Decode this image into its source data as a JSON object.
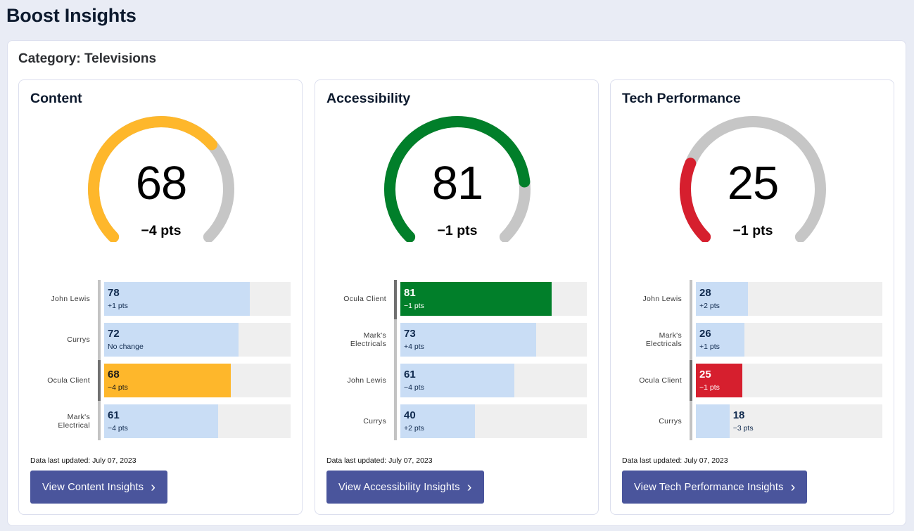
{
  "page": {
    "title": "Boost Insights"
  },
  "category": {
    "label": "Category: Televisions"
  },
  "colors": {
    "track": "#c6c6c6",
    "bar_default": "#c9ddf5",
    "bar_track": "#efefef",
    "button": "#4a559c",
    "warning": "#feb72b",
    "good": "#017f2a",
    "bad": "#d61f2e"
  },
  "cards": [
    {
      "title": "Content",
      "score": "68",
      "score_value": 68,
      "delta": "−4 pts",
      "accent": "#feb72b",
      "accent_text": "#1a1a1a",
      "rows": [
        {
          "label": "John Lewis",
          "value": 78,
          "value_text": "78",
          "change": "+1 pts",
          "client": false
        },
        {
          "label": "Currys",
          "value": 72,
          "value_text": "72",
          "change": "No change",
          "client": false
        },
        {
          "label": "Ocula Client",
          "value": 68,
          "value_text": "68",
          "change": "−4 pts",
          "client": true
        },
        {
          "label": "Mark's Electrical",
          "value": 61,
          "value_text": "61",
          "change": "−4 pts",
          "client": false
        }
      ],
      "updated": "Data last updated: July 07, 2023",
      "button_label": "View Content Insights",
      "button_icon": "chevron-right-icon"
    },
    {
      "title": "Accessibility",
      "score": "81",
      "score_value": 81,
      "delta": "−1 pts",
      "accent": "#017f2a",
      "accent_text": "#ffffff",
      "rows": [
        {
          "label": "Ocula Client",
          "value": 81,
          "value_text": "81",
          "change": "−1 pts",
          "client": true
        },
        {
          "label": "Mark's Electricals",
          "value": 73,
          "value_text": "73",
          "change": "+4 pts",
          "client": false
        },
        {
          "label": "John Lewis",
          "value": 61,
          "value_text": "61",
          "change": "−4 pts",
          "client": false
        },
        {
          "label": "Currys",
          "value": 40,
          "value_text": "40",
          "change": "+2 pts",
          "client": false
        }
      ],
      "updated": "Data last updated: July 07, 2023",
      "button_label": "View Accessibility Insights",
      "button_icon": "chevron-right-icon"
    },
    {
      "title": "Tech Performance",
      "score": "25",
      "score_value": 25,
      "delta": "−1 pts",
      "accent": "#d61f2e",
      "accent_text": "#ffffff",
      "rows": [
        {
          "label": "John Lewis",
          "value": 28,
          "value_text": "28",
          "change": "+2 pts",
          "client": false
        },
        {
          "label": "Mark's Electricals",
          "value": 26,
          "value_text": "26",
          "change": "+1 pts",
          "client": false
        },
        {
          "label": "Ocula Client",
          "value": 25,
          "value_text": "25",
          "change": "−1 pts",
          "client": true
        },
        {
          "label": "Currys",
          "value": 18,
          "value_text": "18",
          "change": "−3 pts",
          "client": false
        }
      ],
      "updated": "Data last updated: July 07, 2023",
      "button_label": "View Tech Performance Insights",
      "button_icon": "chevron-right-icon"
    }
  ]
}
